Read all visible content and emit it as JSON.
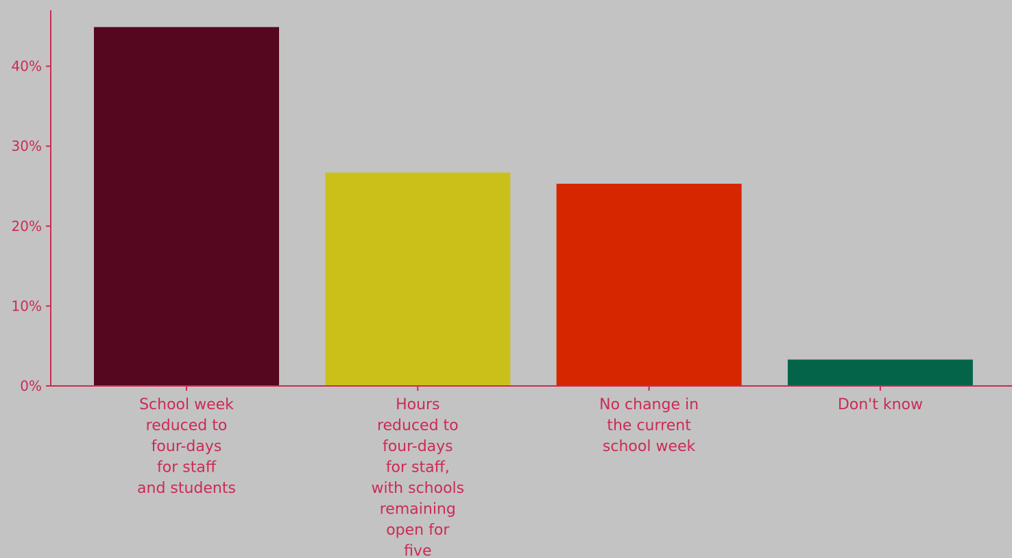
{
  "chart_data": {
    "type": "bar",
    "categories": [
      [
        "School week",
        "reduced to",
        "four-days",
        "for staff",
        "and students"
      ],
      [
        "Hours",
        "reduced to",
        "four-days",
        "for staff,",
        "with schools",
        "remaining",
        "open for",
        "five"
      ],
      [
        "No change in",
        "the current",
        "school week"
      ],
      [
        "Don't know"
      ]
    ],
    "values": [
      44.9,
      26.7,
      25.3,
      3.3
    ],
    "bar_colors": [
      "#54071e",
      "#cbc01a",
      "#d52600",
      "#04644a"
    ],
    "axis_color": "#cc2a55",
    "ylim": [
      0,
      47
    ],
    "yticks": [
      0,
      10,
      20,
      30,
      40
    ],
    "ytick_labels": [
      "0%",
      "10%",
      "20%",
      "30%",
      "40%"
    ],
    "xlabel": "",
    "ylabel": "",
    "title": "",
    "grid": false,
    "legend": "none"
  }
}
